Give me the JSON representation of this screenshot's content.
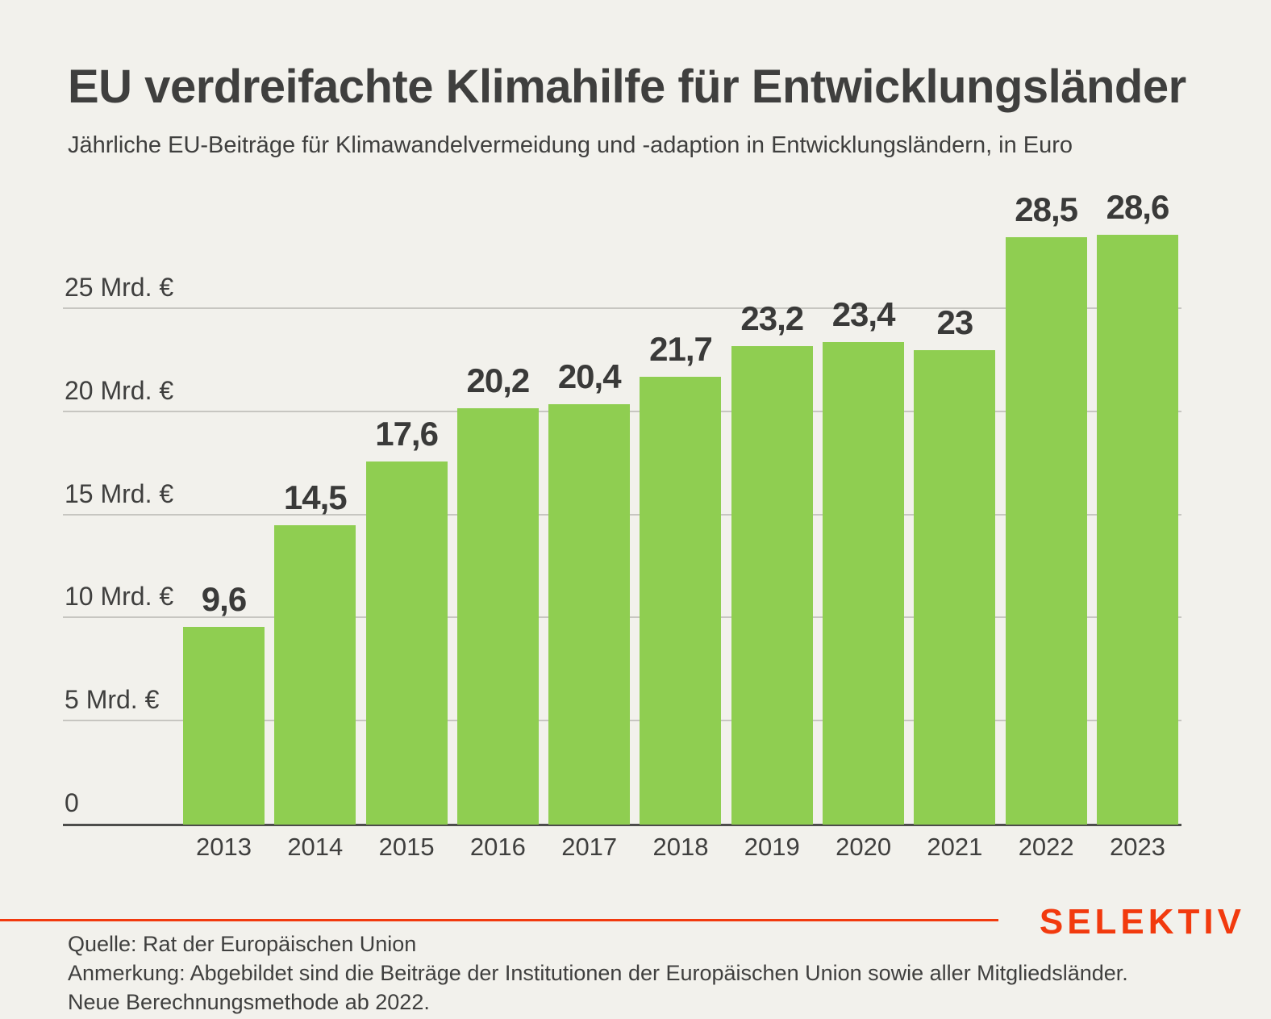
{
  "header": {
    "title": "EU verdreifachte Klimahilfe für Entwicklungsländer",
    "subtitle": "Jährliche EU-Beiträge für Klimawandelvermeidung und -adaption in Entwicklungsländern, in Euro"
  },
  "chart_data": {
    "type": "bar",
    "title": "EU verdreifachte Klimahilfe für Entwicklungsländer",
    "subtitle": "Jährliche EU-Beiträge für Klimawandelvermeidung und -adaption in Entwicklungsländern, in Euro",
    "categories": [
      "2013",
      "2014",
      "2015",
      "2016",
      "2017",
      "2018",
      "2019",
      "2020",
      "2021",
      "2022",
      "2023"
    ],
    "values": [
      9.6,
      14.5,
      17.6,
      20.2,
      20.4,
      21.7,
      23.2,
      23.4,
      23,
      28.5,
      28.6
    ],
    "value_labels": [
      "9,6",
      "14,5",
      "17,6",
      "20,2",
      "20,4",
      "21,7",
      "23,2",
      "23,4",
      "23",
      "28,5",
      "28,6"
    ],
    "unit": "Mrd. €",
    "xlabel": "",
    "ylabel": "",
    "y_ticks": [
      {
        "value": 0,
        "label": "0"
      },
      {
        "value": 5,
        "label": "5 Mrd. €"
      },
      {
        "value": 10,
        "label": "10 Mrd. €"
      },
      {
        "value": 15,
        "label": "15 Mrd. €"
      },
      {
        "value": 20,
        "label": "20 Mrd. €"
      },
      {
        "value": 25,
        "label": "25 Mrd. €"
      }
    ],
    "ylim": [
      0,
      30.6
    ],
    "grid": true,
    "legend": false,
    "bar_color": "#8FCE51"
  },
  "footer": {
    "source": "Quelle: Rat der Europäischen Union",
    "note_line1": "Anmerkung: Abgebildet sind die Beiträge der Institutionen der Europäischen Union sowie aller Mitgliedsländer.",
    "note_line2": "Neue Berechnungsmethode ab 2022.",
    "brand": "SELEKTIV"
  },
  "colors": {
    "background": "#F2F1EC",
    "bar_green": "#8FCE51",
    "accent_orange": "#F23A0E",
    "text_dark": "#3F3F3E",
    "gridline": "#C7C6C1",
    "baseline": "#4D4D4B"
  }
}
